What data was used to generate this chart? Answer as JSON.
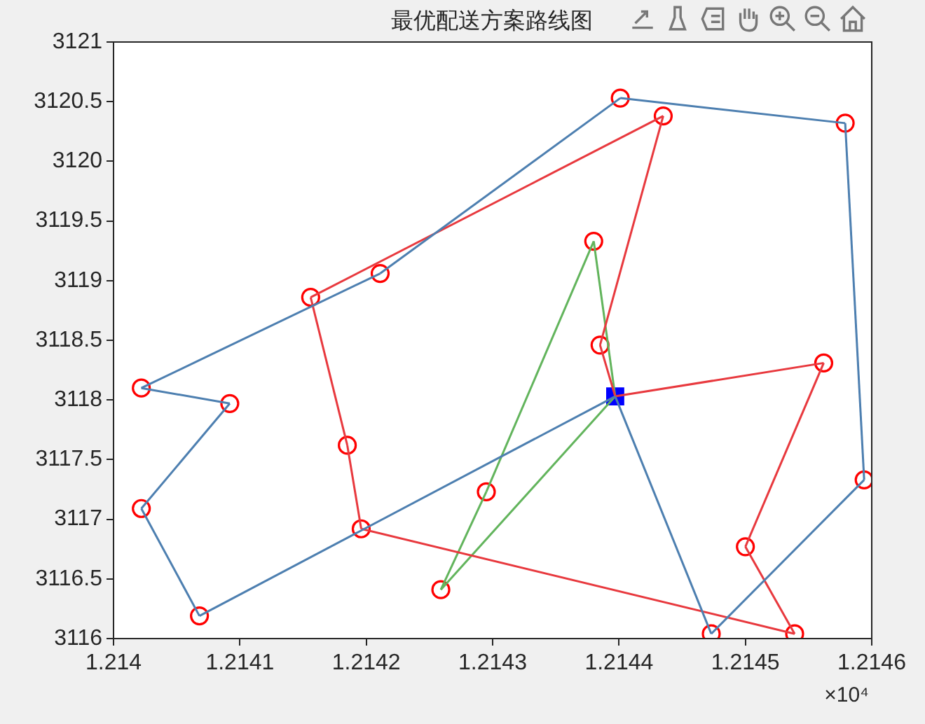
{
  "chart_data": {
    "type": "line",
    "title": "最优配送方案路线图",
    "annotations": [
      "×10⁴"
    ],
    "xlim": [
      1.214,
      1.2146
    ],
    "xticks": [
      1.214,
      1.2141,
      1.2142,
      1.2143,
      1.2144,
      1.2145,
      1.2146
    ],
    "ylim": [
      3116,
      3121
    ],
    "yticks": [
      3116,
      3116.5,
      3117,
      3117.5,
      3118,
      3118.5,
      3119,
      3119.5,
      3120,
      3120.5,
      3121
    ],
    "grid": false,
    "legend": false,
    "line_style": "solid",
    "marker": "none",
    "series": [
      {
        "color": "#4d7fb0",
        "x": [
          1.214068,
          1.214397
        ],
        "values": [
          3116.19,
          3118.03
        ]
      },
      {
        "color": "#4d7fb0",
        "x": [
          1.214022,
          1.214068
        ],
        "values": [
          3117.09,
          3116.19
        ]
      },
      {
        "color": "#4d7fb0",
        "x": [
          1.214022,
          1.214092
        ],
        "values": [
          3117.09,
          3117.97
        ]
      },
      {
        "color": "#4d7fb0",
        "x": [
          1.214022,
          1.214092
        ],
        "values": [
          3118.1,
          3117.97
        ]
      },
      {
        "color": "#4d7fb0",
        "x": [
          1.214022,
          1.214211
        ],
        "values": [
          3118.1,
          3119.06
        ]
      },
      {
        "color": "#4d7fb0",
        "x": [
          1.214211,
          1.214401
        ],
        "values": [
          3119.06,
          3120.53
        ]
      },
      {
        "color": "#4d7fb0",
        "x": [
          1.214401,
          1.214579
        ],
        "values": [
          3120.53,
          3120.32
        ]
      },
      {
        "color": "#4d7fb0",
        "x": [
          1.214579,
          1.214594
        ],
        "values": [
          3120.32,
          3117.33
        ]
      },
      {
        "color": "#4d7fb0",
        "x": [
          1.214473,
          1.214594
        ],
        "values": [
          3116.04,
          3117.33
        ]
      },
      {
        "color": "#4d7fb0",
        "x": [
          1.214397,
          1.214473
        ],
        "values": [
          3118.03,
          3116.04
        ]
      },
      {
        "color": "#e8393e",
        "x": [
          1.214397,
          1.214562
        ],
        "values": [
          3118.03,
          3118.31
        ]
      },
      {
        "color": "#e8393e",
        "x": [
          1.2145,
          1.214562
        ],
        "values": [
          3116.77,
          3118.31
        ]
      },
      {
        "color": "#e8393e",
        "x": [
          1.2145,
          1.214539
        ],
        "values": [
          3116.77,
          3116.04
        ]
      },
      {
        "color": "#e8393e",
        "x": [
          1.214196,
          1.214539
        ],
        "values": [
          3116.92,
          3116.04
        ]
      },
      {
        "color": "#e8393e",
        "x": [
          1.214185,
          1.214196
        ],
        "values": [
          3117.62,
          3116.92
        ]
      },
      {
        "color": "#e8393e",
        "x": [
          1.214156,
          1.214185
        ],
        "values": [
          3118.86,
          3117.62
        ]
      },
      {
        "color": "#e8393e",
        "x": [
          1.214156,
          1.214435
        ],
        "values": [
          3118.86,
          3120.38
        ]
      },
      {
        "color": "#e8393e",
        "x": [
          1.214385,
          1.214435
        ],
        "values": [
          3118.46,
          3120.38
        ]
      },
      {
        "color": "#e8393e",
        "x": [
          1.214385,
          1.214397
        ],
        "values": [
          3118.46,
          3118.03
        ]
      },
      {
        "color": "#62b45c",
        "x": [
          1.21438,
          1.214397
        ],
        "values": [
          3119.33,
          3118.03
        ]
      },
      {
        "color": "#62b45c",
        "x": [
          1.214295,
          1.21438
        ],
        "values": [
          3117.23,
          3119.33
        ]
      },
      {
        "color": "#62b45c",
        "x": [
          1.214259,
          1.214295
        ],
        "values": [
          3116.41,
          3117.23
        ]
      },
      {
        "color": "#62b45c",
        "x": [
          1.214259,
          1.214397
        ],
        "values": [
          3116.41,
          3118.03
        ]
      },
      {
        "type": "scatter",
        "marker": "circle",
        "color": "#ff0000",
        "x": [
          1.214068,
          1.214022,
          1.214092,
          1.214022,
          1.214211,
          1.214401,
          1.214579,
          1.214594,
          1.214473,
          1.214562,
          1.2145,
          1.214539,
          1.214196,
          1.214185,
          1.214156,
          1.214435,
          1.214385,
          1.21438,
          1.214295,
          1.214259
        ],
        "values": [
          3116.19,
          3117.09,
          3117.97,
          3118.1,
          3119.06,
          3120.53,
          3120.32,
          3117.33,
          3116.04,
          3118.31,
          3116.77,
          3116.04,
          3116.92,
          3117.62,
          3118.86,
          3120.38,
          3118.46,
          3119.33,
          3117.23,
          3116.41
        ]
      },
      {
        "type": "scatter",
        "marker": "square",
        "color": "#0000ff",
        "x": [
          1.214397
        ],
        "values": [
          3118.03
        ]
      }
    ]
  }
}
